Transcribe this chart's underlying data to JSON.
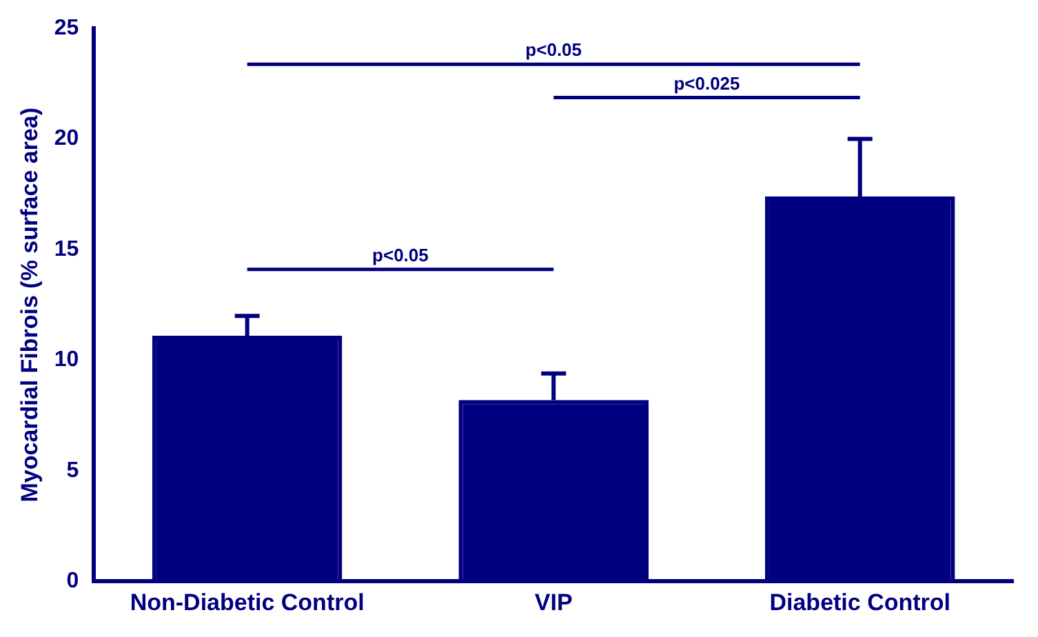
{
  "chart_data": {
    "type": "bar",
    "ylabel": "Myocardial Fibrois (% surface area)",
    "categories": [
      "Non-Diabetic Control",
      "VIP",
      "Diabetic Control"
    ],
    "values": [
      11.1,
      8.2,
      17.4
    ],
    "errors": [
      [
        11.1,
        12.0
      ],
      [
        8.2,
        9.4
      ],
      [
        17.4,
        20.0
      ]
    ],
    "color": "#000080",
    "ylim": [
      0,
      25
    ],
    "yticks": [
      0,
      5,
      10,
      15,
      20,
      25
    ],
    "grid": false,
    "legend": false,
    "annotations": [
      "p<0.05",
      "p<0.025",
      "p<0.05"
    ]
  }
}
